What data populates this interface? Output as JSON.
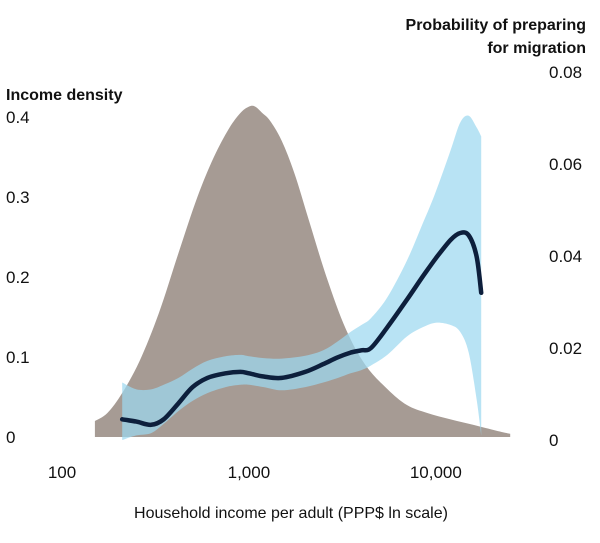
{
  "chart_data": {
    "type": "area",
    "xlabel": "Household income per adult (PPP$ ln scale)",
    "y_left_label": "Income density",
    "y_right_label_lines": [
      "Probability of preparing",
      "for migration"
    ],
    "x_scale": "log",
    "x_ticks": [
      100,
      1000,
      10000
    ],
    "x_tick_labels": [
      "100",
      "1,000",
      "10,000"
    ],
    "xlim": [
      100,
      30000
    ],
    "y_left_ticks": [
      0,
      0.1,
      0.2,
      0.3,
      0.4
    ],
    "y_left_tick_labels": [
      "0",
      "0.1",
      "0.2",
      "0.3",
      "0.4"
    ],
    "ylim_left": [
      0,
      0.4
    ],
    "y_right_ticks": [
      0,
      0.02,
      0.04,
      0.06,
      0.08
    ],
    "y_right_tick_labels": [
      "0",
      "0.02",
      "0.04",
      "0.06",
      "0.08"
    ],
    "ylim_right": [
      0,
      0.08
    ],
    "colors": {
      "density": "#a69b94",
      "band": "#9dd8f0",
      "line": "#0d1f3c"
    },
    "density": {
      "x": [
        150,
        175,
        210,
        260,
        330,
        420,
        530,
        650,
        780,
        900,
        1000,
        1080,
        1180,
        1300,
        1500,
        1750,
        2100,
        2600,
        3300,
        4200,
        5500,
        7000,
        9000,
        12000,
        16000,
        21000,
        25000
      ],
      "y": [
        0.02,
        0.03,
        0.055,
        0.095,
        0.155,
        0.23,
        0.3,
        0.35,
        0.385,
        0.405,
        0.413,
        0.413,
        0.405,
        0.395,
        0.37,
        0.33,
        0.27,
        0.2,
        0.135,
        0.09,
        0.06,
        0.04,
        0.03,
        0.022,
        0.015,
        0.008,
        0.004
      ]
    },
    "ci_band": {
      "x": [
        210,
        250,
        300,
        350,
        420,
        500,
        600,
        750,
        900,
        1000,
        1200,
        1500,
        2000,
        2500,
        3000,
        3500,
        4000,
        4500,
        5500,
        7000,
        8500,
        10000,
        12000,
        13500,
        15000,
        16500,
        17500
      ],
      "upper": [
        0.0125,
        0.011,
        0.011,
        0.012,
        0.0135,
        0.0155,
        0.0172,
        0.0182,
        0.0185,
        0.0182,
        0.0178,
        0.0177,
        0.0183,
        0.0195,
        0.0215,
        0.0235,
        0.025,
        0.0265,
        0.031,
        0.039,
        0.047,
        0.054,
        0.063,
        0.069,
        0.0705,
        0.068,
        0.066
      ],
      "lower": [
        0,
        0.001,
        0.0015,
        0.0035,
        0.0063,
        0.0085,
        0.0102,
        0.0115,
        0.012,
        0.012,
        0.0115,
        0.0108,
        0.0115,
        0.0125,
        0.0135,
        0.0145,
        0.0152,
        0.0162,
        0.0185,
        0.0225,
        0.0245,
        0.0255,
        0.025,
        0.0235,
        0.019,
        0.009,
        0.001
      ]
    },
    "probability_line": {
      "x": [
        210,
        250,
        300,
        350,
        420,
        500,
        600,
        750,
        900,
        1000,
        1200,
        1500,
        2000,
        2500,
        3000,
        3500,
        4000,
        4500,
        5500,
        7000,
        8500,
        10000,
        12000,
        13500,
        15000,
        16500,
        17500
      ],
      "y": [
        0.0045,
        0.004,
        0.0033,
        0.0045,
        0.008,
        0.0115,
        0.0135,
        0.0145,
        0.0148,
        0.0145,
        0.0138,
        0.0135,
        0.0148,
        0.0165,
        0.018,
        0.019,
        0.0195,
        0.02,
        0.0245,
        0.0305,
        0.0355,
        0.0395,
        0.0435,
        0.045,
        0.0445,
        0.04,
        0.032
      ]
    }
  }
}
